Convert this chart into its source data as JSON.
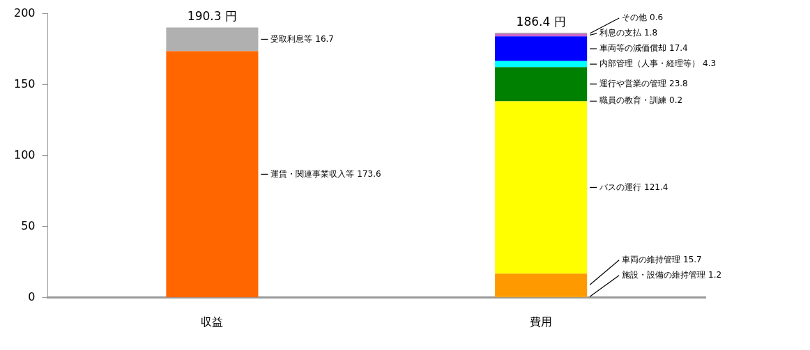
{
  "chart_data": {
    "type": "bar",
    "stacked": true,
    "categories": [
      "収益",
      "費用"
    ],
    "series": [
      {
        "color": "#ff6600",
        "values": [
          173.6,
          null
        ],
        "value_labels": [
          "運賃・関連事業収入等 173.6",
          null
        ]
      },
      {
        "color": "#b0b0b0",
        "values": [
          16.7,
          null
        ],
        "value_labels": [
          "受取利息等 16.7",
          null
        ]
      },
      {
        "color": "#ff9900",
        "values": [
          null,
          1.2
        ],
        "value_labels": [
          null,
          "施設・設備の維持管理 1.2"
        ]
      },
      {
        "color": "#ff9900",
        "values": [
          null,
          15.7
        ],
        "value_labels": [
          null,
          "車両の維持管理 15.7"
        ]
      },
      {
        "color": "#ffff00",
        "values": [
          null,
          121.4
        ],
        "value_labels": [
          null,
          "バスの運行 121.4"
        ]
      },
      {
        "color": "#006600",
        "values": [
          null,
          0.2
        ],
        "value_labels": [
          null,
          "職員の教育・訓練 0.2"
        ]
      },
      {
        "color": "#008000",
        "values": [
          null,
          23.8
        ],
        "value_labels": [
          null,
          "運行や営業の管理 23.8"
        ]
      },
      {
        "color": "#00ffff",
        "values": [
          null,
          4.3
        ],
        "value_labels": [
          null,
          "内部管理（人事・経理等） 4.3"
        ]
      },
      {
        "color": "#0000ff",
        "values": [
          null,
          17.4
        ],
        "value_labels": [
          null,
          "車両等の減価償却 17.4"
        ]
      },
      {
        "color": "#cc66cc",
        "values": [
          null,
          1.8
        ],
        "value_labels": [
          null,
          "利息の支払 1.8"
        ]
      },
      {
        "color": "#808080",
        "values": [
          null,
          0.6
        ],
        "value_labels": [
          null,
          "その他 0.6"
        ]
      }
    ],
    "totals": [
      "190.3 円",
      "186.4 円"
    ],
    "ylim": [
      0,
      200
    ],
    "yticks": [
      0,
      50,
      100,
      150,
      200
    ],
    "grid": false,
    "legend": false
  }
}
